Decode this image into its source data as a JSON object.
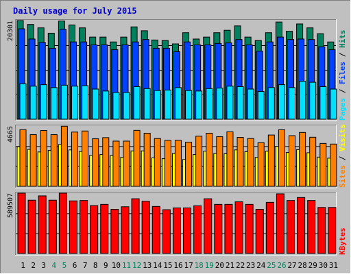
{
  "title": "Daily usage for July 2015",
  "colors": {
    "title": "#0000cc",
    "background": "#c0c0c0",
    "hits": "#00805c",
    "files": "#0040ff",
    "pages": "#00e0ff",
    "visits": "#ffff00",
    "sites": "#ff8000",
    "kbytes": "#ff0000",
    "weekend_label": "#00805c",
    "weekday_label": "#000000",
    "slash": "#000000"
  },
  "days": [
    "1",
    "2",
    "3",
    "4",
    "5",
    "6",
    "7",
    "8",
    "9",
    "10",
    "11",
    "12",
    "13",
    "14",
    "15",
    "16",
    "17",
    "18",
    "19",
    "20",
    "21",
    "22",
    "23",
    "24",
    "25",
    "26",
    "27",
    "28",
    "29",
    "30",
    "31"
  ],
  "weekend_days": [
    "4",
    "5",
    "11",
    "12",
    "18",
    "19",
    "25",
    "26"
  ],
  "chart_data": [
    {
      "type": "bar",
      "panel": "hits-files-pages",
      "categories": [
        "1",
        "2",
        "3",
        "4",
        "5",
        "6",
        "7",
        "8",
        "9",
        "10",
        "11",
        "12",
        "13",
        "14",
        "15",
        "16",
        "17",
        "18",
        "19",
        "20",
        "21",
        "22",
        "23",
        "24",
        "25",
        "26",
        "27",
        "28",
        "29",
        "30",
        "31"
      ],
      "y_max_label": "20301",
      "ylim": [
        0,
        20301
      ],
      "series": [
        {
          "name": "Hits",
          "values": [
            20301,
            19500,
            18800,
            17700,
            20200,
            19400,
            18800,
            16900,
            16900,
            15900,
            16900,
            19000,
            18200,
            16300,
            16200,
            15500,
            17800,
            16500,
            16900,
            17800,
            18300,
            19200,
            16900,
            16200,
            17800,
            20000,
            18100,
            19600,
            18800,
            17600,
            15900
          ]
        },
        {
          "name": "Files",
          "values": [
            18600,
            16500,
            15800,
            14600,
            18500,
            15900,
            15900,
            15300,
            15300,
            14300,
            15300,
            15900,
            16400,
            14600,
            14600,
            13900,
            15900,
            15300,
            15300,
            15600,
            15700,
            16400,
            15300,
            14000,
            15900,
            16900,
            16400,
            16500,
            16400,
            14900,
            14300
          ]
        },
        {
          "name": "Pages",
          "values": [
            7300,
            6800,
            7100,
            6500,
            7000,
            6800,
            6900,
            6200,
            5800,
            5500,
            5500,
            6700,
            6300,
            5900,
            6000,
            6500,
            5900,
            5800,
            6300,
            6400,
            6800,
            6700,
            6200,
            5700,
            6500,
            7100,
            6500,
            7800,
            7600,
            6700,
            6200
          ]
        }
      ],
      "legend": [
        "Pages",
        "Files",
        "Hits"
      ]
    },
    {
      "type": "bar",
      "panel": "sites-visits",
      "categories": [
        "1",
        "2",
        "3",
        "4",
        "5",
        "6",
        "7",
        "8",
        "9",
        "10",
        "11",
        "12",
        "13",
        "14",
        "15",
        "16",
        "17",
        "18",
        "19",
        "20",
        "21",
        "22",
        "23",
        "24",
        "25",
        "26",
        "27",
        "28",
        "29",
        "30",
        "31"
      ],
      "y_max_label": "4665",
      "ylim": [
        0,
        4665
      ],
      "series": [
        {
          "name": "Visits",
          "values": [
            3060,
            2860,
            2660,
            2780,
            3240,
            2820,
            2700,
            2400,
            2460,
            2380,
            2240,
            2740,
            2740,
            2200,
            2140,
            2540,
            2080,
            2460,
            2720,
            2540,
            2520,
            2820,
            2680,
            2240,
            2720,
            3100,
            2620,
            2840,
            2600,
            2260,
            2180
          ]
        },
        {
          "name": "Sites",
          "values": [
            4380,
            4000,
            4320,
            4000,
            4650,
            4200,
            4280,
            3680,
            3770,
            3500,
            3500,
            4330,
            4110,
            3700,
            3560,
            3560,
            3420,
            3880,
            4110,
            3840,
            4220,
            3790,
            3700,
            3380,
            3970,
            4380,
            3920,
            4170,
            3800,
            3320,
            3270
          ]
        }
      ],
      "legend": [
        "Sites",
        "Visits"
      ]
    },
    {
      "type": "bar",
      "panel": "kbytes",
      "categories": [
        "1",
        "2",
        "3",
        "4",
        "5",
        "6",
        "7",
        "8",
        "9",
        "10",
        "11",
        "12",
        "13",
        "14",
        "15",
        "16",
        "17",
        "18",
        "19",
        "20",
        "21",
        "22",
        "23",
        "24",
        "25",
        "26",
        "27",
        "28",
        "29",
        "30",
        "31"
      ],
      "y_max_label": "589507",
      "ylim": [
        0,
        589507
      ],
      "series": [
        {
          "name": "KBytes",
          "values": [
            589507,
            521000,
            563000,
            521000,
            589500,
            514000,
            518000,
            468000,
            480000,
            432000,
            457000,
            535000,
            510000,
            460000,
            428000,
            445000,
            445000,
            466000,
            535000,
            480000,
            480000,
            505000,
            480000,
            432000,
            500000,
            583000,
            518000,
            547000,
            518000,
            450000,
            450000
          ]
        }
      ],
      "legend": [
        "KBytes"
      ]
    }
  ]
}
